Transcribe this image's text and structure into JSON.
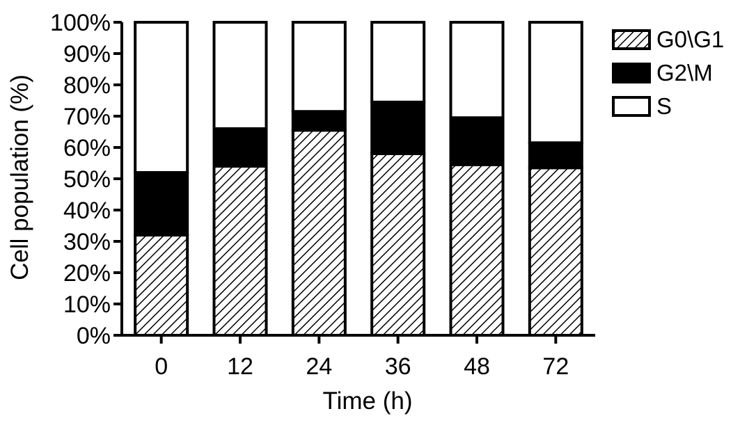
{
  "chart_data": {
    "type": "bar",
    "stacked": true,
    "categories": [
      "0",
      "12",
      "24",
      "36",
      "48",
      "72"
    ],
    "series": [
      {
        "name": "G0\\G1",
        "values": [
          32,
          54,
          65.5,
          58,
          54.5,
          53.5
        ],
        "fill": "hatch"
      },
      {
        "name": "G2\\M",
        "values": [
          20,
          12,
          6,
          16.5,
          15,
          8
        ],
        "fill": "#000000"
      },
      {
        "name": "S",
        "values": [
          48,
          34,
          28.5,
          25.5,
          30.5,
          38.5
        ],
        "fill": "#ffffff"
      }
    ],
    "xlabel": "Time (h)",
    "ylabel": "Cell population (%)",
    "ylim": [
      0,
      100
    ],
    "yticks": [
      "0%",
      "10%",
      "20%",
      "30%",
      "40%",
      "50%",
      "60%",
      "70%",
      "80%",
      "90%",
      "100%"
    ],
    "legend_position": "right",
    "grid": false
  }
}
